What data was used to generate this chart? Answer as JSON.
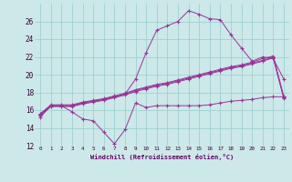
{
  "xlabel": "Windchill (Refroidissement éolien,°C)",
  "bg_color": "#cce8e8",
  "grid_color": "#99cccc",
  "line_color": "#993399",
  "xlim": [
    -0.5,
    23.5
  ],
  "ylim": [
    12,
    28
  ],
  "yticks": [
    12,
    14,
    16,
    18,
    20,
    22,
    24,
    26
  ],
  "xticks": [
    0,
    1,
    2,
    3,
    4,
    5,
    6,
    7,
    8,
    9,
    10,
    11,
    12,
    13,
    14,
    15,
    16,
    17,
    18,
    19,
    20,
    21,
    22,
    23
  ],
  "series1_x": [
    0,
    1,
    2,
    3,
    4,
    5,
    6,
    7,
    8,
    9,
    10,
    11,
    12,
    13,
    14,
    15,
    16,
    17,
    18,
    19,
    20,
    21,
    22,
    23
  ],
  "series1_y": [
    15.2,
    16.5,
    16.5,
    15.8,
    15.0,
    14.8,
    13.5,
    12.2,
    13.8,
    16.8,
    16.3,
    16.5,
    16.5,
    16.5,
    16.5,
    16.5,
    16.6,
    16.8,
    17.0,
    17.1,
    17.2,
    17.4,
    17.5,
    17.5
  ],
  "series2_x": [
    0,
    1,
    2,
    3,
    4,
    5,
    6,
    7,
    8,
    9,
    10,
    11,
    12,
    13,
    14,
    15,
    16,
    17,
    18,
    19,
    20,
    21,
    22,
    23
  ],
  "series2_y": [
    15.5,
    16.5,
    16.5,
    16.5,
    16.8,
    17.0,
    17.2,
    17.5,
    17.8,
    19.5,
    22.5,
    25.0,
    25.5,
    26.0,
    27.2,
    26.8,
    26.3,
    26.2,
    24.5,
    23.0,
    21.5,
    22.0,
    21.8,
    19.5
  ],
  "series3_x": [
    0,
    1,
    2,
    3,
    4,
    5,
    6,
    7,
    8,
    9,
    10,
    11,
    12,
    13,
    14,
    15,
    16,
    17,
    18,
    19,
    20,
    21,
    22,
    23
  ],
  "series3_y": [
    15.5,
    16.5,
    16.5,
    16.5,
    16.8,
    17.0,
    17.2,
    17.5,
    17.8,
    18.2,
    18.5,
    18.8,
    19.0,
    19.3,
    19.6,
    19.9,
    20.2,
    20.5,
    20.8,
    21.0,
    21.3,
    21.6,
    22.0,
    17.4
  ],
  "series4_x": [
    0,
    1,
    2,
    3,
    4,
    5,
    6,
    7,
    8,
    9,
    10,
    11,
    12,
    13,
    14,
    15,
    16,
    17,
    18,
    19,
    20,
    21,
    22,
    23
  ],
  "series4_y": [
    15.6,
    16.6,
    16.6,
    16.6,
    16.9,
    17.1,
    17.3,
    17.6,
    17.9,
    18.3,
    18.6,
    18.9,
    19.1,
    19.4,
    19.7,
    20.0,
    20.3,
    20.6,
    20.9,
    21.1,
    21.4,
    21.8,
    22.1,
    17.5
  ],
  "series5_x": [
    0,
    1,
    2,
    3,
    4,
    5,
    6,
    7,
    8,
    9,
    10,
    11,
    12,
    13,
    14,
    15,
    16,
    17,
    18,
    19,
    20,
    21,
    22,
    23
  ],
  "series5_y": [
    15.4,
    16.4,
    16.4,
    16.4,
    16.7,
    16.9,
    17.1,
    17.4,
    17.7,
    18.1,
    18.4,
    18.7,
    18.9,
    19.2,
    19.5,
    19.8,
    20.1,
    20.4,
    20.7,
    20.9,
    21.2,
    21.5,
    21.9,
    17.3
  ]
}
